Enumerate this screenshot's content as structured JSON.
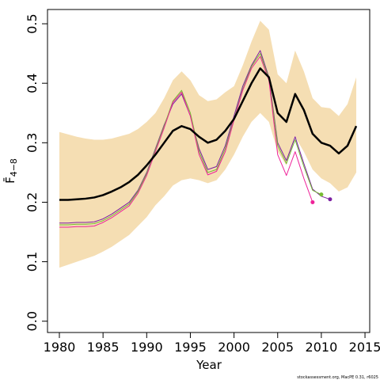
{
  "chart_data": {
    "type": "line",
    "xlabel": "Year",
    "ylabel": "F̄",
    "ylabel_sub": "4−8",
    "credit": "stockassessment.org, MacPE 0.31, r6025",
    "x": [
      1980,
      1981,
      1982,
      1983,
      1984,
      1985,
      1986,
      1987,
      1988,
      1989,
      1990,
      1991,
      1992,
      1993,
      1994,
      1995,
      1996,
      1997,
      1998,
      1999,
      2000,
      2001,
      2002,
      2003,
      2004,
      2005,
      2006,
      2007,
      2008,
      2009,
      2010,
      2011,
      2012,
      2013,
      2014
    ],
    "band": {
      "color": "#f5deb3",
      "upper": [
        0.318,
        0.314,
        0.31,
        0.307,
        0.305,
        0.305,
        0.307,
        0.311,
        0.315,
        0.323,
        0.335,
        0.35,
        0.375,
        0.405,
        0.42,
        0.405,
        0.38,
        0.37,
        0.373,
        0.385,
        0.395,
        0.43,
        0.47,
        0.505,
        0.49,
        0.415,
        0.4,
        0.455,
        0.42,
        0.375,
        0.36,
        0.358,
        0.345,
        0.365,
        0.41
      ],
      "lower": [
        0.09,
        0.095,
        0.1,
        0.105,
        0.11,
        0.117,
        0.125,
        0.135,
        0.145,
        0.16,
        0.175,
        0.195,
        0.21,
        0.228,
        0.237,
        0.24,
        0.237,
        0.232,
        0.237,
        0.255,
        0.28,
        0.31,
        0.335,
        0.35,
        0.335,
        0.285,
        0.262,
        0.31,
        0.285,
        0.255,
        0.24,
        0.232,
        0.218,
        0.225,
        0.25
      ]
    },
    "series": [
      {
        "color": "#000000",
        "width": 2.5,
        "values": [
          0.204,
          0.204,
          0.205,
          0.206,
          0.208,
          0.212,
          0.218,
          0.225,
          0.234,
          0.246,
          0.262,
          0.28,
          0.3,
          0.32,
          0.328,
          0.323,
          0.31,
          0.3,
          0.305,
          0.32,
          0.34,
          0.37,
          0.4,
          0.425,
          0.41,
          0.35,
          0.335,
          0.382,
          0.355,
          0.315,
          0.3,
          0.295,
          0.282,
          0.295,
          0.328
        ]
      },
      {
        "color": "#7b1fa2",
        "width": 1,
        "values": [
          0.165,
          0.165,
          0.166,
          0.166,
          0.167,
          0.172,
          0.18,
          0.19,
          0.2,
          0.22,
          0.25,
          0.29,
          0.33,
          0.365,
          0.382,
          0.345,
          0.29,
          0.255,
          0.26,
          0.295,
          0.345,
          0.395,
          0.43,
          0.455,
          0.41,
          0.3,
          0.27,
          0.31,
          0.265,
          0.222,
          0.21,
          0.205,
          null,
          null,
          null
        ]
      },
      {
        "color": "#77bb33",
        "width": 1,
        "values": [
          0.162,
          0.162,
          0.163,
          0.163,
          0.164,
          0.169,
          0.177,
          0.187,
          0.197,
          0.218,
          0.248,
          0.288,
          0.328,
          0.37,
          0.388,
          0.35,
          0.285,
          0.25,
          0.255,
          0.29,
          0.34,
          0.39,
          0.428,
          0.45,
          0.408,
          0.295,
          0.265,
          0.305,
          0.26,
          0.22,
          0.213,
          null,
          null,
          null,
          null
        ]
      },
      {
        "color": "#ee2299",
        "width": 1,
        "values": [
          0.158,
          0.158,
          0.159,
          0.159,
          0.16,
          0.166,
          0.174,
          0.184,
          0.194,
          0.215,
          0.245,
          0.285,
          0.325,
          0.368,
          0.385,
          0.345,
          0.28,
          0.246,
          0.252,
          0.285,
          0.338,
          0.388,
          0.425,
          0.445,
          0.405,
          0.28,
          0.245,
          0.285,
          0.24,
          0.2,
          null,
          null,
          null,
          null,
          null
        ]
      }
    ],
    "xlim": [
      1978.64,
      2015.54
    ],
    "ylim": [
      -0.019,
      0.524
    ],
    "xticks": [
      1980,
      1985,
      1990,
      1995,
      2000,
      2005,
      2010,
      2015
    ],
    "yticks": [
      {
        "value": 0,
        "label": "0.0"
      },
      {
        "value": 0.1,
        "label": "0.1"
      },
      {
        "value": 0.2,
        "label": "0.2"
      },
      {
        "value": 0.3,
        "label": "0.3"
      },
      {
        "value": 0.4,
        "label": "0.4"
      },
      {
        "value": 0.5,
        "label": "0.5"
      }
    ]
  }
}
